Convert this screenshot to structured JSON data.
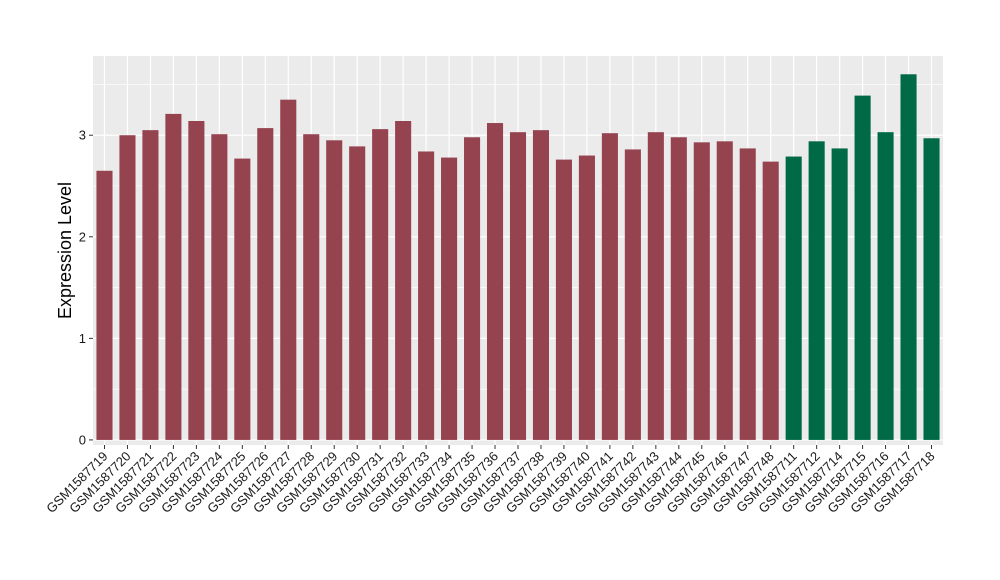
{
  "chart_data": {
    "type": "bar",
    "title": "",
    "xlabel": "",
    "ylabel": "Expression Level",
    "ylim": [
      -0.05,
      3.78
    ],
    "yticks": [
      0,
      1,
      2,
      3
    ],
    "grid": true,
    "background": "#ebebeb",
    "grid_color": "#ffffff",
    "categories": [
      "GSM1587719",
      "GSM1587720",
      "GSM1587721",
      "GSM1587722",
      "GSM1587723",
      "GSM1587724",
      "GSM1587725",
      "GSM1587726",
      "GSM1587727",
      "GSM1587728",
      "GSM1587729",
      "GSM1587730",
      "GSM1587731",
      "GSM1587732",
      "GSM1587733",
      "GSM1587734",
      "GSM1587735",
      "GSM1587736",
      "GSM1587737",
      "GSM1587738",
      "GSM1587739",
      "GSM1587740",
      "GSM1587741",
      "GSM1587742",
      "GSM1587743",
      "GSM1587744",
      "GSM1587745",
      "GSM1587746",
      "GSM1587747",
      "GSM1587748",
      "GSM1587711",
      "GSM1587712",
      "GSM1587714",
      "GSM1587715",
      "GSM1587716",
      "GSM1587717",
      "GSM1587718"
    ],
    "values": [
      2.65,
      3.0,
      3.05,
      3.21,
      3.14,
      3.01,
      2.77,
      3.07,
      3.35,
      3.01,
      2.95,
      2.89,
      3.06,
      3.14,
      2.84,
      2.78,
      2.98,
      3.12,
      3.03,
      3.05,
      2.76,
      2.8,
      3.02,
      2.86,
      3.03,
      2.98,
      2.93,
      2.94,
      2.87,
      2.74,
      2.79,
      2.94,
      2.87,
      3.39,
      3.03,
      3.6,
      2.97
    ],
    "groups": [
      "a",
      "a",
      "a",
      "a",
      "a",
      "a",
      "a",
      "a",
      "a",
      "a",
      "a",
      "a",
      "a",
      "a",
      "a",
      "a",
      "a",
      "a",
      "a",
      "a",
      "a",
      "a",
      "a",
      "a",
      "a",
      "a",
      "a",
      "a",
      "a",
      "a",
      "b",
      "b",
      "b",
      "b",
      "b",
      "b",
      "b"
    ],
    "group_colors": {
      "a": "#964350",
      "b": "#006a46"
    }
  }
}
